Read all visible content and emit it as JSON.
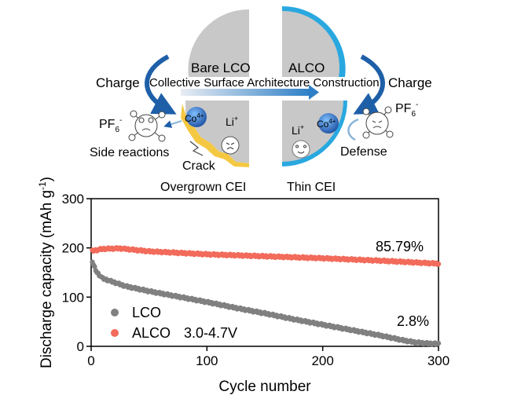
{
  "schematic": {
    "bare_label": "Bare LCO",
    "alco_label": "ALCO",
    "charge_left": "Charge",
    "charge_right": "Charge",
    "process_label": "Collective Surface Architecture Construction",
    "pf6_left": "PF",
    "pf6_left_sub": "6",
    "pf6_left_sup": "-",
    "pf6_right": "PF",
    "pf6_right_sub": "6",
    "pf6_right_sup": "-",
    "co_left": "Co",
    "co_left_sup": "4+",
    "co_right": "Co",
    "co_right_sup": "4+",
    "li_left": "Li",
    "li_left_sup": "+",
    "li_right": "Li",
    "li_right_sup": "+",
    "side_reactions": "Side reactions",
    "crack": "Crack",
    "defense": "Defense",
    "overgrown_cei": "Overgrown CEI",
    "thin_cei": "Thin CEI",
    "colors": {
      "lco_surface": "#f5c842",
      "alco_coating": "#29a8e0",
      "arrow_blue": "#1e5fa8",
      "particle": "#c8c8c8"
    }
  },
  "chart_data": {
    "type": "scatter",
    "xlabel": "Cycle number",
    "ylabel_main": "Discharge capacity (mAh g",
    "ylabel_sup": "-1",
    "ylabel_end": ")",
    "xlim": [
      0,
      300
    ],
    "ylim": [
      0,
      300
    ],
    "xticks": [
      "0",
      "100",
      "200",
      "300"
    ],
    "yticks": [
      "0",
      "100",
      "200",
      "300"
    ],
    "legend_position": "bottom-left",
    "voltage_note": "3.0-4.7V",
    "series": [
      {
        "name": "LCO",
        "color": "#808080",
        "end_label": "2.8%",
        "x": [
          1,
          2,
          5,
          10,
          20,
          30,
          50,
          75,
          100,
          125,
          150,
          175,
          200,
          225,
          250,
          270,
          280,
          290,
          300
        ],
        "y": [
          172,
          165,
          150,
          138,
          130,
          122,
          112,
          101,
          90,
          78,
          67,
          55,
          44,
          33,
          22,
          12,
          8,
          6,
          5
        ]
      },
      {
        "name": "ALCO",
        "color": "#f26b5b",
        "end_label": "85.79%",
        "x": [
          1,
          10,
          25,
          50,
          100,
          150,
          200,
          250,
          300
        ],
        "y": [
          194,
          198,
          199,
          193,
          187,
          183,
          179,
          174,
          168
        ]
      }
    ]
  }
}
